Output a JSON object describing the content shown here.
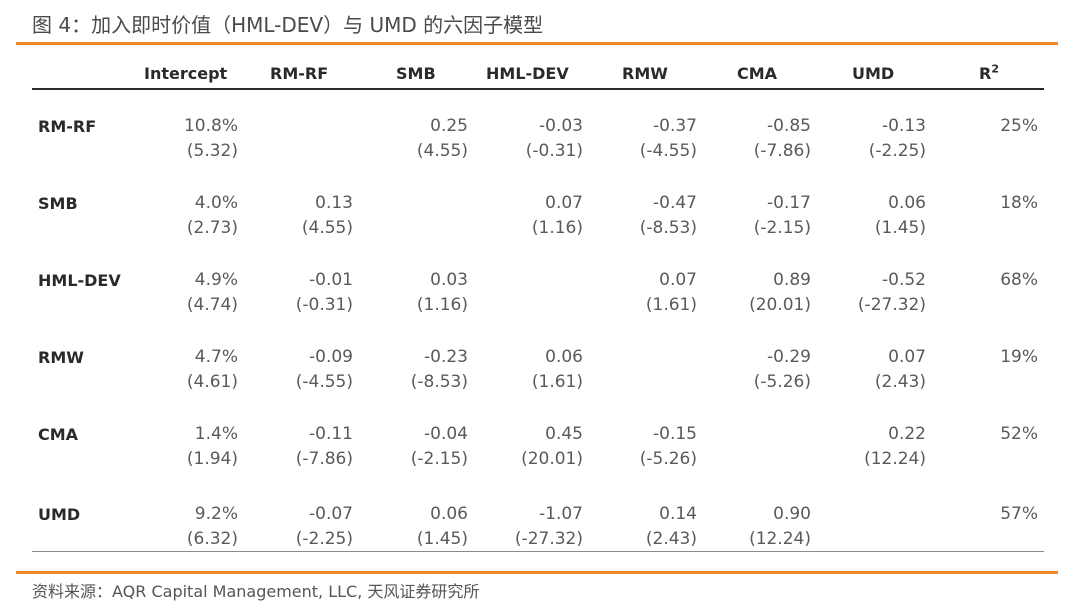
{
  "title": "图 4：加入即时价值（HML-DEV）与 UMD 的六因子模型",
  "columns": [
    "Intercept",
    "RM-RF",
    "SMB",
    "HML-DEV",
    "RMW",
    "CMA",
    "UMD",
    "R"
  ],
  "r2_superscript": "2",
  "rows": [
    {
      "label": "RM-RF",
      "cells": [
        {
          "coef": "10.8%",
          "tstat": "(5.32)"
        },
        {
          "coef": "",
          "tstat": ""
        },
        {
          "coef": "0.25",
          "tstat": "(4.55)"
        },
        {
          "coef": "-0.03",
          "tstat": "(-0.31)"
        },
        {
          "coef": "-0.37",
          "tstat": "(-4.55)"
        },
        {
          "coef": "-0.85",
          "tstat": "(-7.86)"
        },
        {
          "coef": "-0.13",
          "tstat": "(-2.25)"
        },
        {
          "coef": "25%",
          "tstat": ""
        }
      ]
    },
    {
      "label": "SMB",
      "cells": [
        {
          "coef": "4.0%",
          "tstat": "(2.73)"
        },
        {
          "coef": "0.13",
          "tstat": "(4.55)"
        },
        {
          "coef": "",
          "tstat": ""
        },
        {
          "coef": "0.07",
          "tstat": "(1.16)"
        },
        {
          "coef": "-0.47",
          "tstat": "(-8.53)"
        },
        {
          "coef": "-0.17",
          "tstat": "(-2.15)"
        },
        {
          "coef": "0.06",
          "tstat": "(1.45)"
        },
        {
          "coef": "18%",
          "tstat": ""
        }
      ]
    },
    {
      "label": "HML-DEV",
      "cells": [
        {
          "coef": "4.9%",
          "tstat": "(4.74)"
        },
        {
          "coef": "-0.01",
          "tstat": "(-0.31)"
        },
        {
          "coef": "0.03",
          "tstat": "(1.16)"
        },
        {
          "coef": "",
          "tstat": ""
        },
        {
          "coef": "0.07",
          "tstat": "(1.61)"
        },
        {
          "coef": "0.89",
          "tstat": "(20.01)"
        },
        {
          "coef": "-0.52",
          "tstat": "(-27.32)"
        },
        {
          "coef": "68%",
          "tstat": ""
        }
      ]
    },
    {
      "label": "RMW",
      "cells": [
        {
          "coef": "4.7%",
          "tstat": "(4.61)"
        },
        {
          "coef": "-0.09",
          "tstat": "(-4.55)"
        },
        {
          "coef": "-0.23",
          "tstat": "(-8.53)"
        },
        {
          "coef": "0.06",
          "tstat": "(1.61)"
        },
        {
          "coef": "",
          "tstat": ""
        },
        {
          "coef": "-0.29",
          "tstat": "(-5.26)"
        },
        {
          "coef": "0.07",
          "tstat": "(2.43)"
        },
        {
          "coef": "19%",
          "tstat": ""
        }
      ]
    },
    {
      "label": "CMA",
      "cells": [
        {
          "coef": "1.4%",
          "tstat": "(1.94)"
        },
        {
          "coef": "-0.11",
          "tstat": "(-7.86)"
        },
        {
          "coef": "-0.04",
          "tstat": "(-2.15)"
        },
        {
          "coef": "0.45",
          "tstat": "(20.01)"
        },
        {
          "coef": "-0.15",
          "tstat": "(-5.26)"
        },
        {
          "coef": "",
          "tstat": ""
        },
        {
          "coef": "0.22",
          "tstat": "(12.24)"
        },
        {
          "coef": "52%",
          "tstat": ""
        }
      ]
    },
    {
      "label": "UMD",
      "cells": [
        {
          "coef": "9.2%",
          "tstat": "(6.32)"
        },
        {
          "coef": "-0.07",
          "tstat": "(-2.25)"
        },
        {
          "coef": "0.06",
          "tstat": "(1.45)"
        },
        {
          "coef": "-1.07",
          "tstat": "(-27.32)"
        },
        {
          "coef": "0.14",
          "tstat": "(2.43)"
        },
        {
          "coef": "0.90",
          "tstat": "(12.24)"
        },
        {
          "coef": "",
          "tstat": ""
        },
        {
          "coef": "57%",
          "tstat": ""
        }
      ]
    }
  ],
  "source": "资料来源：AQR Capital Management, LLC, 天风证券研究所",
  "colors": {
    "accent_rule": "#ef8a27",
    "header_rule": "#2a2a2a",
    "text": "#5a5a5a"
  }
}
